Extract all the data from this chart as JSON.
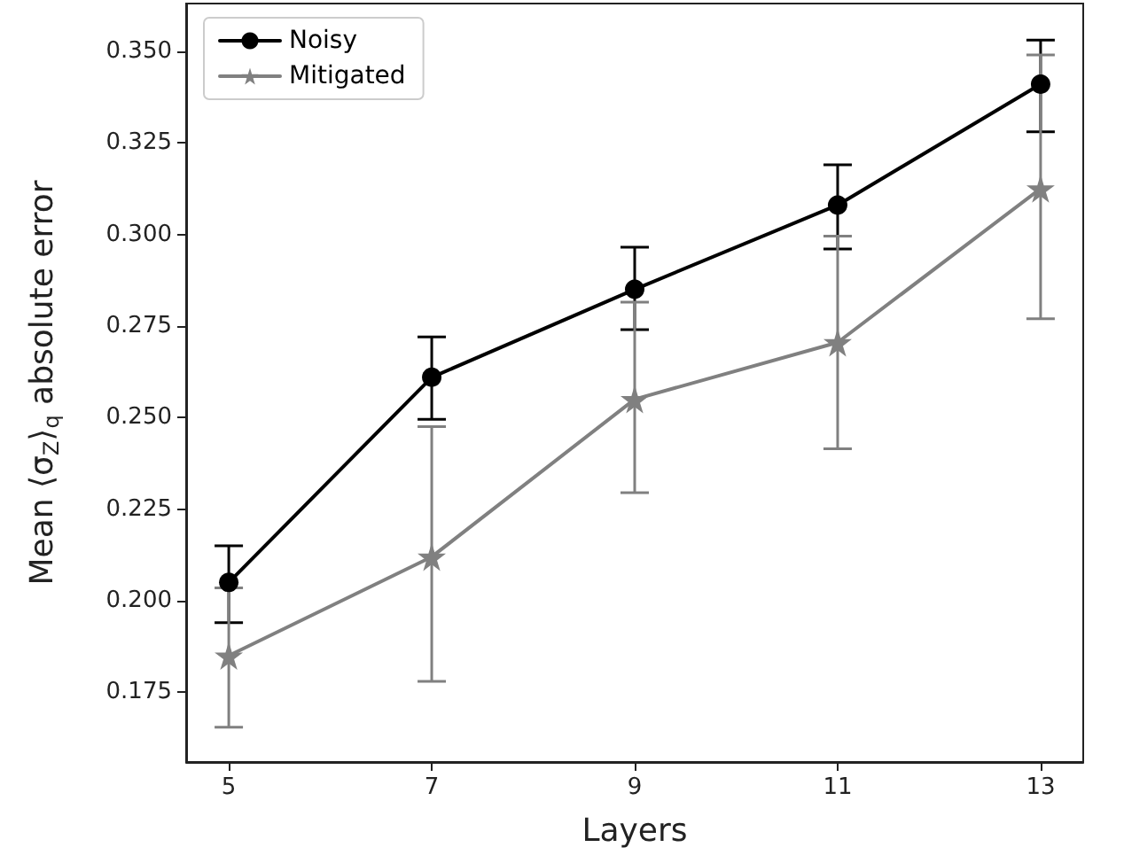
{
  "chart_data": {
    "type": "line",
    "xlabel": "Layers",
    "ylabel": "Mean ⟨σ$_{Z}$⟩$_{q}$ absolute error",
    "x": [
      5,
      7,
      9,
      11,
      13
    ],
    "series": [
      {
        "name": "Noisy",
        "color": "#000000",
        "marker": "circle",
        "values": [
          0.205,
          0.261,
          0.285,
          0.308,
          0.341
        ],
        "errors": [
          [
            0.194,
            0.215
          ],
          [
            0.2495,
            0.272
          ],
          [
            0.274,
            0.2965
          ],
          [
            0.296,
            0.319
          ],
          [
            0.328,
            0.353
          ]
        ]
      },
      {
        "name": "Mitigated",
        "color": "#808080",
        "marker": "star",
        "values": [
          0.185,
          0.212,
          0.255,
          0.2705,
          0.3125
        ],
        "errors": [
          [
            0.1655,
            0.2035
          ],
          [
            0.178,
            0.2475
          ],
          [
            0.2295,
            0.2815
          ],
          [
            0.2415,
            0.2995
          ],
          [
            0.277,
            0.349
          ]
        ]
      }
    ],
    "xlim": [
      4.58,
      13.42
    ],
    "xticks": [
      5,
      7,
      9,
      11,
      13
    ],
    "ylim": [
      0.156,
      0.363
    ],
    "yticks": [
      {
        "value": 0.175,
        "label": "0.175"
      },
      {
        "value": 0.2,
        "label": "0.200"
      },
      {
        "value": 0.225,
        "label": "0.225"
      },
      {
        "value": 0.25,
        "label": "0.250"
      },
      {
        "value": 0.275,
        "label": "0.275"
      },
      {
        "value": 0.3,
        "label": "0.300"
      },
      {
        "value": 0.325,
        "label": "0.325"
      },
      {
        "value": 0.35,
        "label": "0.350"
      }
    ],
    "grid": false,
    "legend": "top left",
    "line_style": "solid"
  }
}
